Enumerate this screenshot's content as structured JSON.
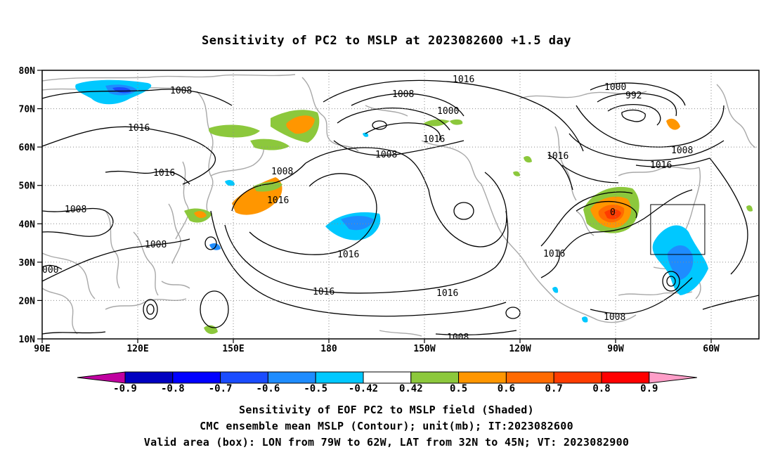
{
  "title": "Sensitivity of PC2 to MSLP at 2023082600 +1.5 day",
  "lat_labels": [
    "80N",
    "70N",
    "60N",
    "50N",
    "40N",
    "30N",
    "20N",
    "10N"
  ],
  "lon_labels": [
    "90E",
    "120E",
    "150E",
    "180",
    "150W",
    "120W",
    "90W",
    "60W"
  ],
  "contour_labels": [
    "1008",
    "1016",
    "1016",
    "1008",
    "1008",
    "000",
    "1008",
    "1016",
    "1008",
    "1016",
    "1008",
    "1016",
    "1000",
    "1016",
    "1000",
    "992",
    "1008",
    "1016",
    "1016",
    "1016",
    "1016",
    "1016",
    "1008",
    "1008",
    "0"
  ],
  "colorbar": {
    "labels": [
      "-0.9",
      "-0.8",
      "-0.7",
      "-0.6",
      "-0.5",
      "-0.42",
      "0.42",
      "0.5",
      "0.6",
      "0.7",
      "0.8",
      "0.9"
    ],
    "colors": [
      "#c000a0",
      "#0000c0",
      "#0000ff",
      "#1a4cff",
      "#1e8cff",
      "#00c8ff",
      "#ffffff",
      "#8cc83c",
      "#ff9600",
      "#ff6a00",
      "#ff3c00",
      "#ff0000",
      "#ff9ec8"
    ]
  },
  "valid_box": {
    "lon_min": -79,
    "lon_max": -62,
    "lat_min": 32,
    "lat_max": 45
  },
  "captions": [
    "Sensitivity of EOF PC2 to MSLP field (Shaded)",
    "CMC ensemble mean MSLP (Contour); unit(mb); IT:2023082600",
    "Valid area (box): LON from 79W to 62W, LAT from 32N to 45N; VT: 2023082900"
  ]
}
